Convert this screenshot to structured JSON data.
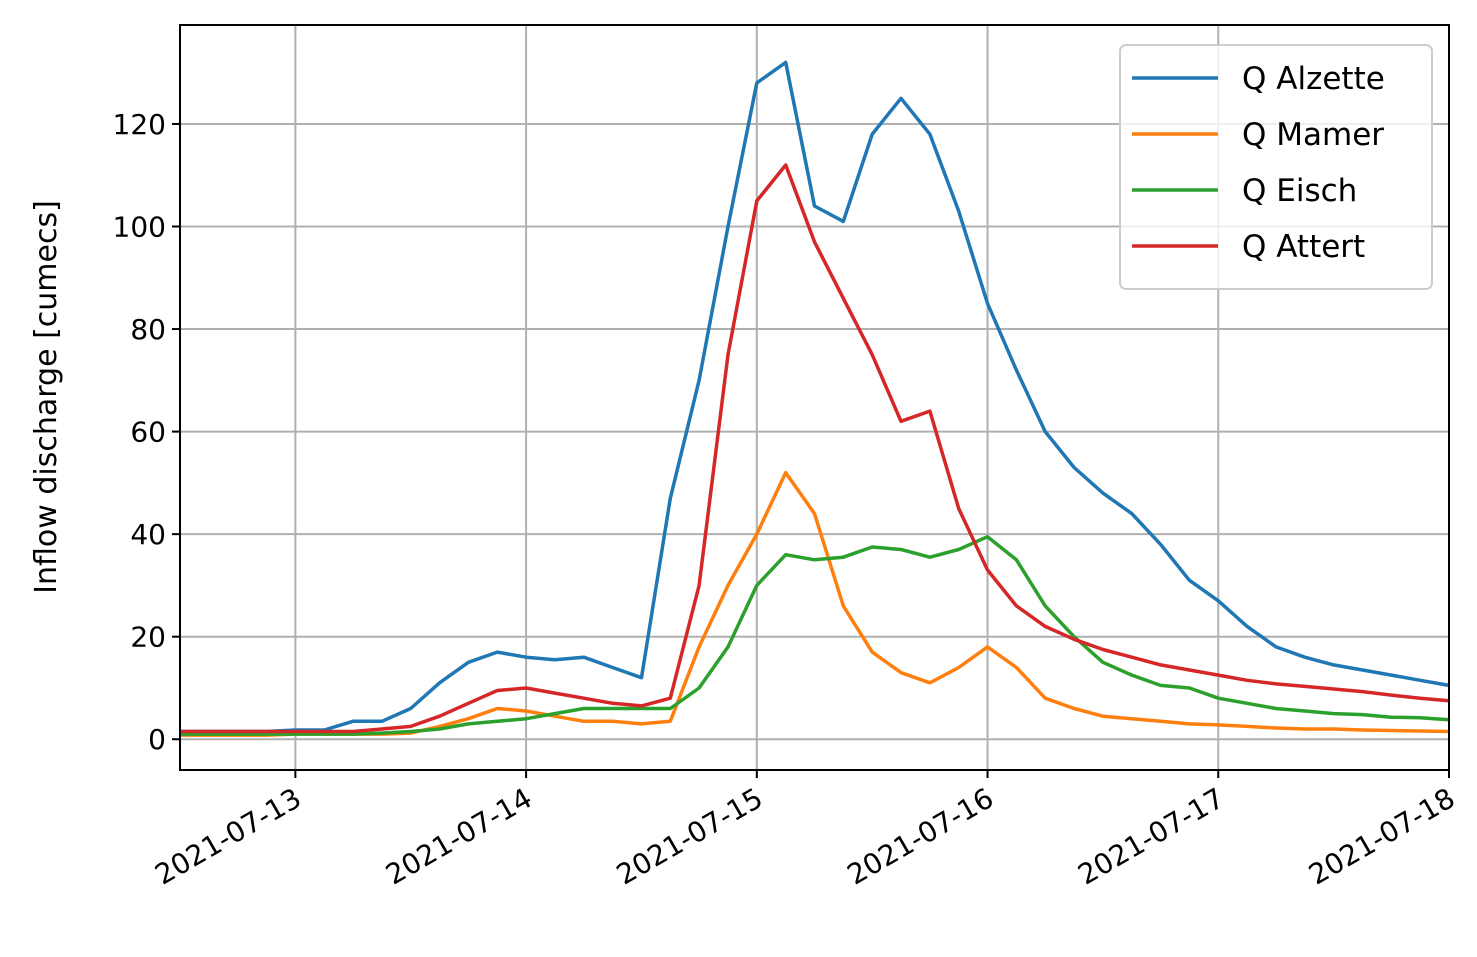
{
  "chart_data": {
    "type": "line",
    "ylabel": "Inflow discharge [cumecs]",
    "x": [
      "2021-07-12 12:00",
      "2021-07-12 15:00",
      "2021-07-12 18:00",
      "2021-07-12 21:00",
      "2021-07-13 00:00",
      "2021-07-13 03:00",
      "2021-07-13 06:00",
      "2021-07-13 09:00",
      "2021-07-13 12:00",
      "2021-07-13 15:00",
      "2021-07-13 18:00",
      "2021-07-13 21:00",
      "2021-07-14 00:00",
      "2021-07-14 03:00",
      "2021-07-14 06:00",
      "2021-07-14 09:00",
      "2021-07-14 12:00",
      "2021-07-14 15:00",
      "2021-07-14 18:00",
      "2021-07-14 21:00",
      "2021-07-15 00:00",
      "2021-07-15 03:00",
      "2021-07-15 06:00",
      "2021-07-15 09:00",
      "2021-07-15 12:00",
      "2021-07-15 15:00",
      "2021-07-15 18:00",
      "2021-07-15 21:00",
      "2021-07-16 00:00",
      "2021-07-16 03:00",
      "2021-07-16 06:00",
      "2021-07-16 09:00",
      "2021-07-16 12:00",
      "2021-07-16 15:00",
      "2021-07-16 18:00",
      "2021-07-16 21:00",
      "2021-07-17 00:00",
      "2021-07-17 03:00",
      "2021-07-17 06:00",
      "2021-07-17 09:00",
      "2021-07-17 12:00",
      "2021-07-17 15:00",
      "2021-07-17 18:00",
      "2021-07-17 21:00",
      "2021-07-18 00:00"
    ],
    "series": [
      {
        "name": "Q Alzette",
        "color": "#1f77b4",
        "values": [
          1.5,
          1.5,
          1.5,
          1.5,
          1.8,
          1.8,
          3.5,
          3.5,
          6,
          11,
          15,
          17,
          16,
          15.5,
          16,
          14,
          12,
          47,
          70,
          100,
          128,
          132,
          104,
          101,
          118,
          125,
          118,
          103,
          85,
          72,
          60,
          53,
          48,
          44,
          38,
          31,
          27,
          22,
          18,
          16,
          14.5,
          13.5,
          12.5,
          11.5,
          10.5
        ]
      },
      {
        "name": "Q Mamer",
        "color": "#ff7f0e",
        "values": [
          0.8,
          0.8,
          0.8,
          0.8,
          1,
          1,
          1,
          1,
          1.2,
          2.5,
          4,
          6,
          5.5,
          4.5,
          3.5,
          3.5,
          3,
          3.5,
          18,
          30,
          40,
          52,
          44,
          26,
          17,
          13,
          11,
          14,
          18,
          14,
          8,
          6,
          4.5,
          4,
          3.5,
          3,
          2.8,
          2.5,
          2.2,
          2,
          2,
          1.8,
          1.7,
          1.6,
          1.5
        ]
      },
      {
        "name": "Q Eisch",
        "color": "#2ca02c",
        "values": [
          1,
          1,
          1,
          1,
          1,
          1,
          1,
          1.2,
          1.5,
          2,
          3,
          3.5,
          4,
          5,
          6,
          6,
          6,
          6,
          10,
          18,
          30,
          36,
          35,
          35.5,
          37.5,
          37,
          35.5,
          37,
          39.5,
          35,
          26,
          20,
          15,
          12.5,
          10.5,
          10,
          8,
          7,
          6,
          5.5,
          5,
          4.8,
          4.3,
          4.2,
          3.8
        ]
      },
      {
        "name": "Q Attert",
        "color": "#d62728",
        "values": [
          1.5,
          1.5,
          1.5,
          1.5,
          1.5,
          1.5,
          1.5,
          2,
          2.5,
          4.5,
          7,
          9.5,
          10,
          9,
          8,
          7,
          6.5,
          8,
          30,
          75,
          105,
          112,
          97,
          86,
          75,
          62,
          64,
          45,
          33,
          26,
          22,
          19.5,
          17.5,
          16,
          14.5,
          13.5,
          12.5,
          11.5,
          10.8,
          10.3,
          9.8,
          9.3,
          8.6,
          8,
          7.5
        ]
      }
    ],
    "xlim": [
      "2021-07-12 12:00",
      "2021-07-18 00:00"
    ],
    "xticks": [
      "2021-07-13",
      "2021-07-14",
      "2021-07-15",
      "2021-07-16",
      "2021-07-17",
      "2021-07-18"
    ],
    "ylim": [
      -6,
      139.3
    ],
    "yticks": [
      0,
      20,
      40,
      60,
      80,
      100,
      120
    ],
    "grid": true,
    "legend": "upper right"
  }
}
